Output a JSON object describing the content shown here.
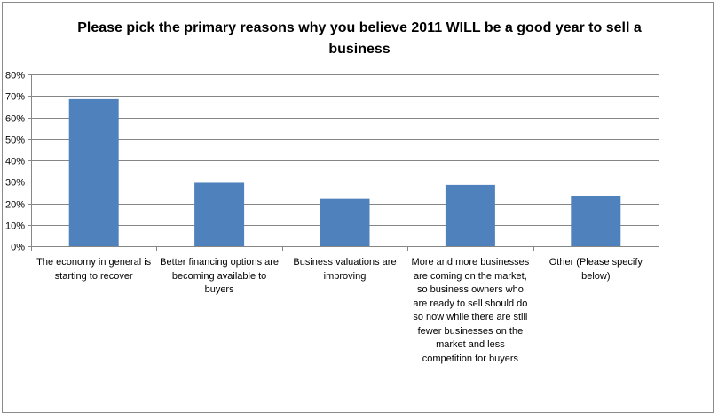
{
  "chart_data": {
    "type": "bar",
    "title": "Please pick the primary reasons why you believe 2011 WILL be a good year to sell a business",
    "categories": [
      "The economy in general is starting to recover",
      "Better financing options are becoming available to buyers",
      "Business valuations are improving",
      "More and more businesses are coming on the market, so business owners who are ready to sell should do so now while there are still fewer businesses on the market and less competition for buyers",
      "Other (Please specify below)"
    ],
    "values": [
      68.5,
      29.5,
      22,
      28.5,
      23.5
    ],
    "yticks": [
      "0%",
      "10%",
      "20%",
      "30%",
      "40%",
      "50%",
      "60%",
      "70%",
      "80%"
    ],
    "ylim": [
      0,
      80
    ],
    "xlabel": "",
    "ylabel": "",
    "grid": true,
    "bar_color": "#4f81bd",
    "grid_color": "#868686"
  }
}
